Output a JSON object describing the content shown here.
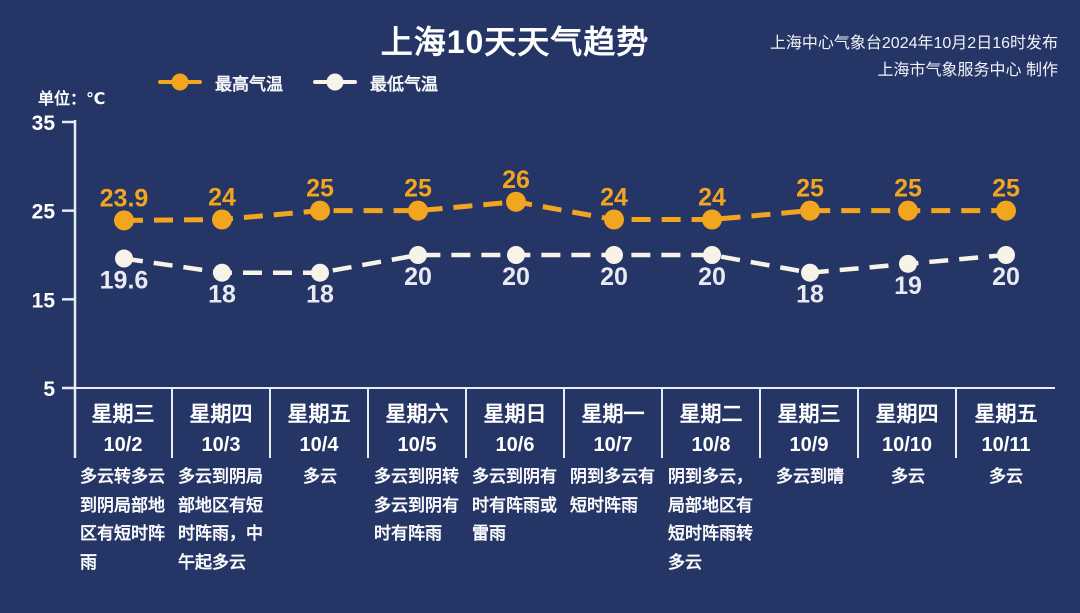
{
  "header": {
    "title": "上海10天天气趋势",
    "publisher_line1": "上海中心气象台2024年10月2日16时发布",
    "publisher_line2": "上海市气象服务中心 制作",
    "unit_label": "单位：℃"
  },
  "colors": {
    "background": "#253566",
    "axis": "#E9ECF5",
    "text": "#FFFFFF",
    "high_series": "#F2A51F",
    "low_series": "#F7F3E8",
    "low_label": "#E9E9F2"
  },
  "chart_data": {
    "type": "line",
    "title": "上海10天天气趋势",
    "ylabel": "℃",
    "ylim": [
      5,
      35
    ],
    "yticks": [
      35,
      25,
      15,
      5
    ],
    "grid": false,
    "line_style": "dashed",
    "legend_position": "top-left",
    "categories": [
      {
        "weekday": "星期三",
        "date": "10/2",
        "weather": "多云转多云到阴局部地区有短时阵雨"
      },
      {
        "weekday": "星期四",
        "date": "10/3",
        "weather": "多云到阴局部地区有短时阵雨，中午起多云"
      },
      {
        "weekday": "星期五",
        "date": "10/4",
        "weather": "多云"
      },
      {
        "weekday": "星期六",
        "date": "10/5",
        "weather": "多云到阴转多云到阴有时有阵雨"
      },
      {
        "weekday": "星期日",
        "date": "10/6",
        "weather": "多云到阴有时有阵雨或雷雨"
      },
      {
        "weekday": "星期一",
        "date": "10/7",
        "weather": "阴到多云有短时阵雨"
      },
      {
        "weekday": "星期二",
        "date": "10/8",
        "weather": "阴到多云，局部地区有短时阵雨转多云"
      },
      {
        "weekday": "星期三",
        "date": "10/9",
        "weather": "多云到晴"
      },
      {
        "weekday": "星期四",
        "date": "10/10",
        "weather": "多云"
      },
      {
        "weekday": "星期五",
        "date": "10/11",
        "weather": "多云"
      }
    ],
    "series": [
      {
        "name": "最高气温",
        "color": "#F2A51F",
        "label_color": "#F2A51F",
        "label_position": "above",
        "values": [
          23.9,
          24,
          25,
          25,
          26,
          24,
          24,
          25,
          25,
          25
        ]
      },
      {
        "name": "最低气温",
        "color": "#F7F3E8",
        "label_color": "#E9E9F2",
        "label_position": "below",
        "values": [
          19.6,
          18,
          18,
          20,
          20,
          20,
          20,
          18,
          19,
          20
        ]
      }
    ]
  }
}
